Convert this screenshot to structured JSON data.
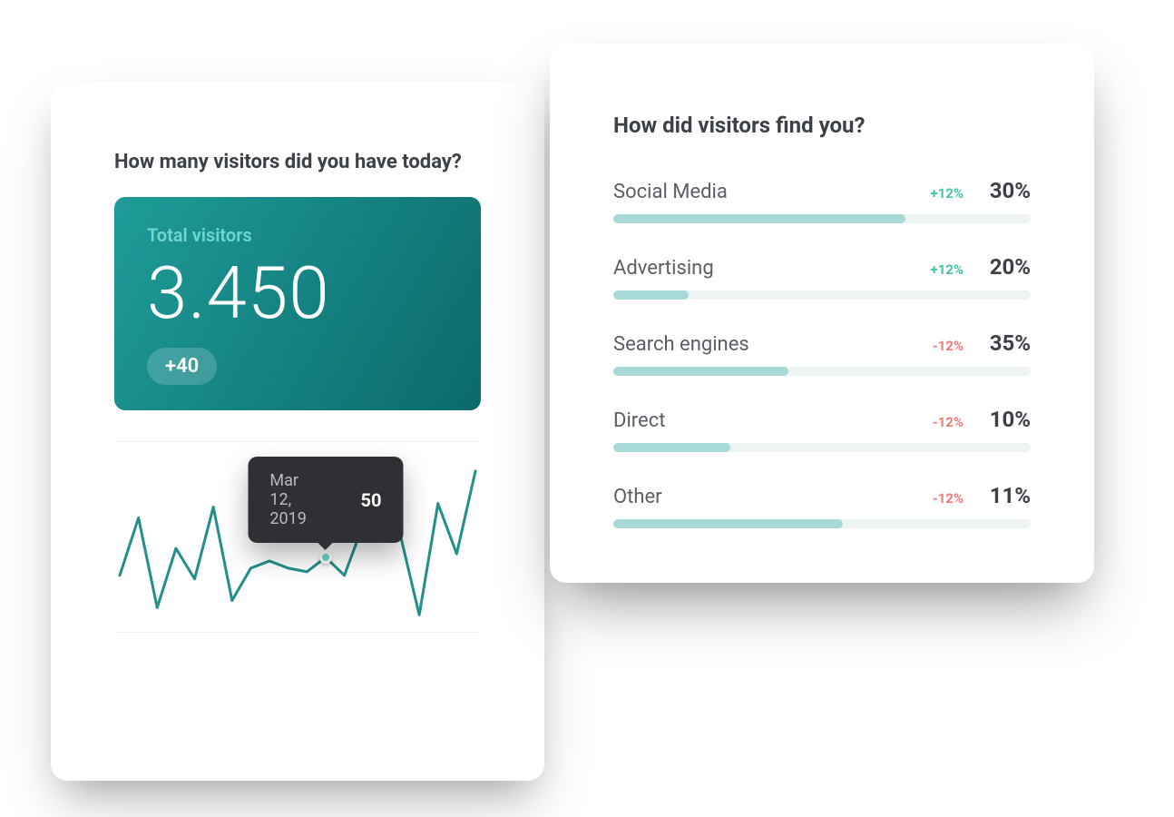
{
  "colors": {
    "text_heading": "#3c4047",
    "text_muted": "#5a5f66",
    "card_bg": "#ffffff",
    "pos": "#3fc6a6",
    "neg": "#f07a74",
    "bar_track": "#eef3f4",
    "bar_fill": "#a7d9d7",
    "divider": "#eef0f2"
  },
  "left_card": {
    "title": "How many visitors did you have today?",
    "stat": {
      "label": "Total visitors",
      "value": "3.450",
      "badge": "+40",
      "label_color": "#6fd7cc",
      "gradient_start": "#1e9c99",
      "gradient_end": "#0b6a6b"
    },
    "chart": {
      "type": "line",
      "line_color": "#238f8a",
      "line_width": 3,
      "point_color": "#6fd7cc",
      "ylim": [
        0,
        100
      ],
      "y_points": [
        40,
        72,
        22,
        55,
        38,
        78,
        26,
        44,
        48,
        44,
        42,
        50,
        40,
        68,
        94,
        62,
        18,
        80,
        52,
        98
      ],
      "highlight_index": 11,
      "tooltip": {
        "date": "Mar 12, 2019",
        "value": "50",
        "bg": "#2e3033"
      }
    }
  },
  "right_card": {
    "title": "How did visitors find you?",
    "sources": [
      {
        "name": "Social Media",
        "delta": "+12%",
        "delta_dir": "pos",
        "pct": "30%",
        "bar": 70
      },
      {
        "name": "Advertising",
        "delta": "+12%",
        "delta_dir": "pos",
        "pct": "20%",
        "bar": 18
      },
      {
        "name": "Search engines",
        "delta": "-12%",
        "delta_dir": "neg",
        "pct": "35%",
        "bar": 42
      },
      {
        "name": "Direct",
        "delta": "-12%",
        "delta_dir": "neg",
        "pct": "10%",
        "bar": 28
      },
      {
        "name": "Other",
        "delta": "-12%",
        "delta_dir": "neg",
        "pct": "11%",
        "bar": 55
      }
    ]
  }
}
